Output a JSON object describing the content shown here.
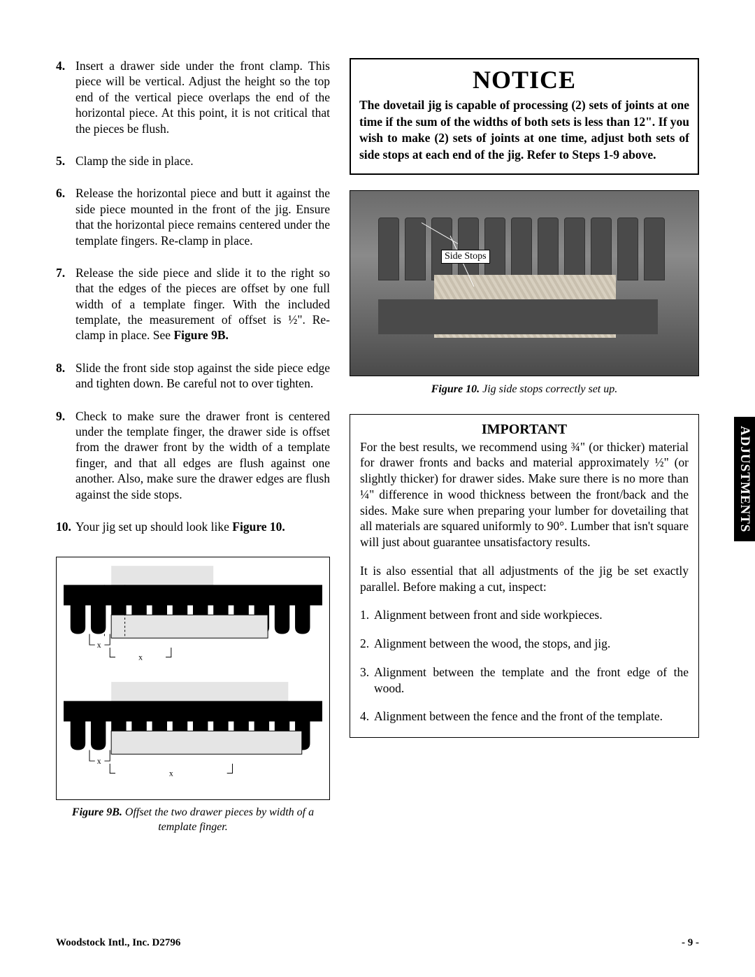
{
  "steps": [
    {
      "n": "4.",
      "text": "Insert a drawer side under the front clamp. This piece will be vertical. Adjust the height so the top end of the vertical piece overlaps the end of the horizontal piece. At this point, it is not critical that the pieces be flush."
    },
    {
      "n": "5.",
      "text": "Clamp the side in place."
    },
    {
      "n": "6.",
      "text": "Release the horizontal piece and butt it against the side piece mounted in the front of the jig. Ensure that the horizontal piece remains centered under the template fingers. Re-clamp in place."
    },
    {
      "n": "7.",
      "text_a": "Release the side piece and slide it to the right so that the edges of the pieces are offset by one full width of a template finger. With the included template, the measurement of offset is ½\". Re-clamp in place. See ",
      "bold": "Figure 9B."
    },
    {
      "n": "8.",
      "text": "Slide the front side stop against the side piece edge and tighten down. Be careful not to over tighten."
    },
    {
      "n": "9.",
      "text": "Check to make sure the drawer front is centered under the template finger, the drawer side is offset from the drawer front by the width of a template finger, and that all edges are flush against one another. Also, make sure the drawer edges are flush against the side stops."
    },
    {
      "n": "10.",
      "text_a": "Your jig set up should look like ",
      "bold": "Figure 10."
    }
  ],
  "figure9B": {
    "label": "Figure 9B.",
    "caption": " Offset the two drawer pieces by width of a template finger.",
    "svg": {
      "tooth_count": 12,
      "tooth_width": 22,
      "tooth_gap": 8,
      "comb_color": "#000000",
      "board_fill": "#e5e5e5",
      "board_stroke": "#000000",
      "marker_x_label": "x",
      "marker_fontsize": 12
    }
  },
  "notice": {
    "title": "NOTICE",
    "body": "The dovetail jig is capable of processing (2) sets of joints at one time if the sum of the widths of both sets is less than 12\". If you wish to make (2) sets of joints at one time, adjust both sets of side stops at each end of the jig. Refer to Steps 1-9 above."
  },
  "figure10": {
    "side_stops_label": "Side Stops",
    "label": "Figure 10.",
    "caption": " Jig side stops correctly set up."
  },
  "important": {
    "title": "IMPORTANT",
    "p1": "For the best results, we recommend using ¾\" (or thicker) material for drawer fronts and backs and material approximately ½\" (or slightly thicker) for drawer sides. Make sure there is no more than ¼\" difference in wood thickness between the front/back and the sides. Make sure when preparing your lumber for dovetailing that all materials are squared uniformly to 90°. Lumber that isn't square will just about guarantee unsatisfactory results.",
    "p2": "It is also essential that all adjustments of the jig be set exactly parallel. Before making a cut, inspect:",
    "checks": [
      "Alignment between front and side workpieces.",
      "Alignment between the wood, the stops, and jig.",
      "Alignment between the template and the front edge of the wood.",
      "Alignment between the fence and the front of the template."
    ]
  },
  "side_tab": "ADJUSTMENTS",
  "footer": {
    "left": "Woodstock Intl., Inc. D2796",
    "right": "- 9 -"
  }
}
